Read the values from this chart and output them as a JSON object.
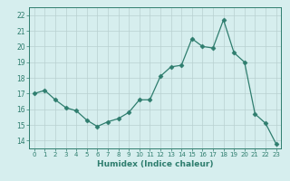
{
  "x": [
    0,
    1,
    2,
    3,
    4,
    5,
    6,
    7,
    8,
    9,
    10,
    11,
    12,
    13,
    14,
    15,
    16,
    17,
    18,
    19,
    20,
    21,
    22,
    23
  ],
  "y": [
    17.0,
    17.2,
    16.6,
    16.1,
    15.9,
    15.3,
    14.9,
    15.2,
    15.4,
    15.8,
    16.6,
    16.6,
    18.1,
    18.7,
    18.8,
    20.5,
    20.0,
    19.9,
    21.7,
    19.6,
    19.0,
    15.7,
    15.1,
    13.8
  ],
  "line_color": "#2e7d6e",
  "marker_color": "#2e7d6e",
  "bg_color": "#d6eeee",
  "grid_color": "#b8d0d0",
  "xlabel": "Humidex (Indice chaleur)",
  "ylim": [
    13.5,
    22.5
  ],
  "xlim": [
    -0.5,
    23.5
  ],
  "yticks": [
    14,
    15,
    16,
    17,
    18,
    19,
    20,
    21,
    22
  ],
  "xticks": [
    0,
    1,
    2,
    3,
    4,
    5,
    6,
    7,
    8,
    9,
    10,
    11,
    12,
    13,
    14,
    15,
    16,
    17,
    18,
    19,
    20,
    21,
    22,
    23
  ],
  "tick_color": "#2e7d6e",
  "label_color": "#2e7d6e"
}
